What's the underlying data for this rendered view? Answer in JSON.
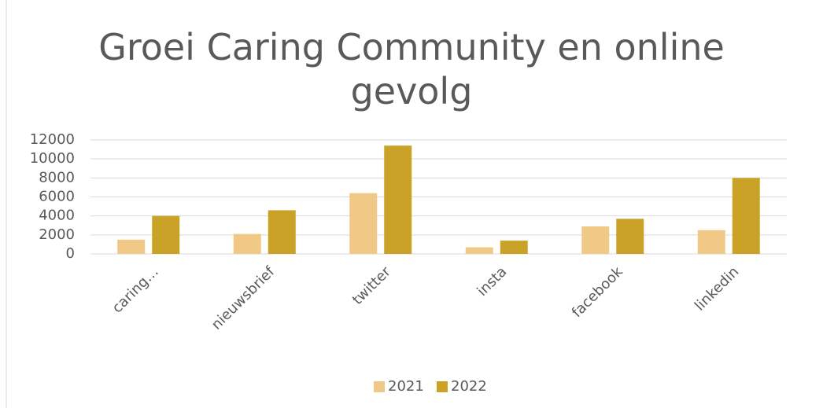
{
  "chart_data": {
    "type": "bar",
    "title": "Groei Caring Community en online gevolg",
    "categories": [
      "caring…",
      "nieuwsbrief",
      "twitter",
      "insta",
      "facebook",
      "linkedin"
    ],
    "series": [
      {
        "name": "2021",
        "color": "#f0c987",
        "values": [
          1500,
          2100,
          6400,
          700,
          2900,
          2500
        ]
      },
      {
        "name": "2022",
        "color": "#c9a227",
        "values": [
          4000,
          4600,
          11400,
          1400,
          3700,
          8000
        ]
      }
    ],
    "ylim": [
      0,
      12000
    ],
    "yticks": [
      0,
      2000,
      4000,
      6000,
      8000,
      10000,
      12000
    ],
    "grid": true,
    "legend": "bottom"
  }
}
